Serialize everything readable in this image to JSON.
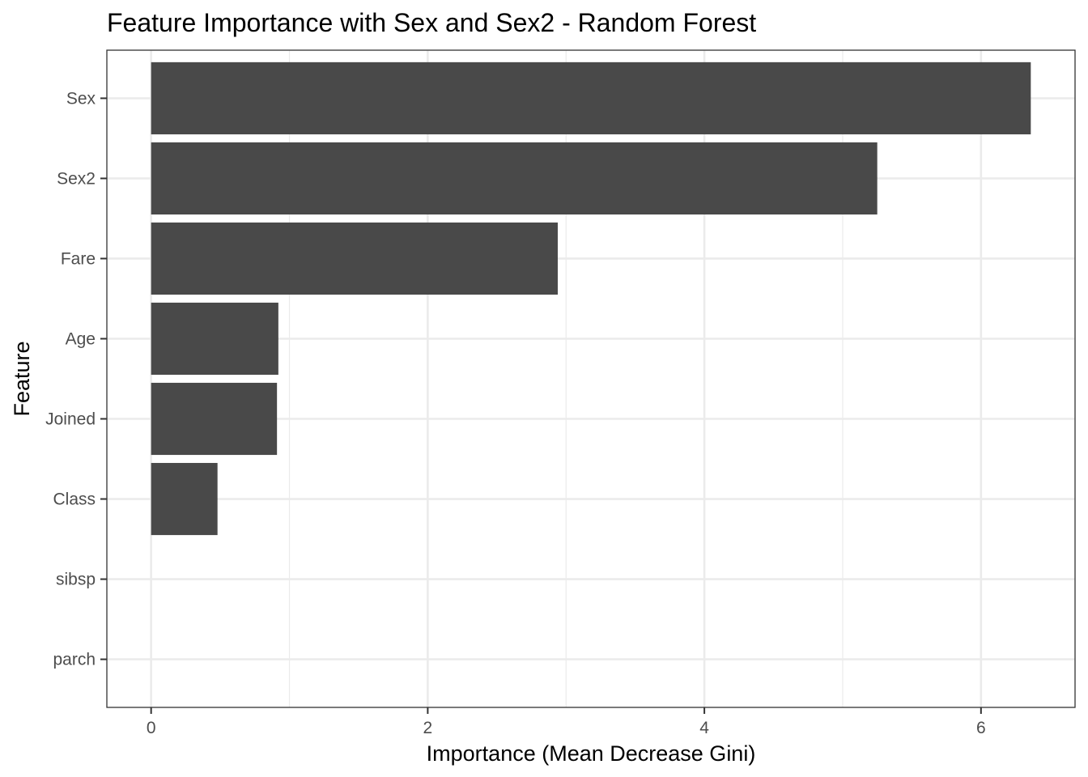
{
  "chart_data": {
    "type": "bar",
    "orientation": "horizontal",
    "title": "Feature Importance with Sex and Sex2 - Random Forest",
    "xlabel": "Importance (Mean Decrease Gini)",
    "ylabel": "Feature",
    "categories": [
      "Sex",
      "Sex2",
      "Fare",
      "Age",
      "Joined",
      "Class",
      "sibsp",
      "parch"
    ],
    "values": [
      6.36,
      5.25,
      2.94,
      0.92,
      0.91,
      0.48,
      0.0,
      0.0
    ],
    "xlim": [
      -0.32,
      6.68
    ],
    "xticks": [
      "0",
      "2",
      "4",
      "6"
    ],
    "grid": true,
    "bar_color": "#494949",
    "panel_border_color": "#333333",
    "grid_color": "#ebebeb"
  }
}
